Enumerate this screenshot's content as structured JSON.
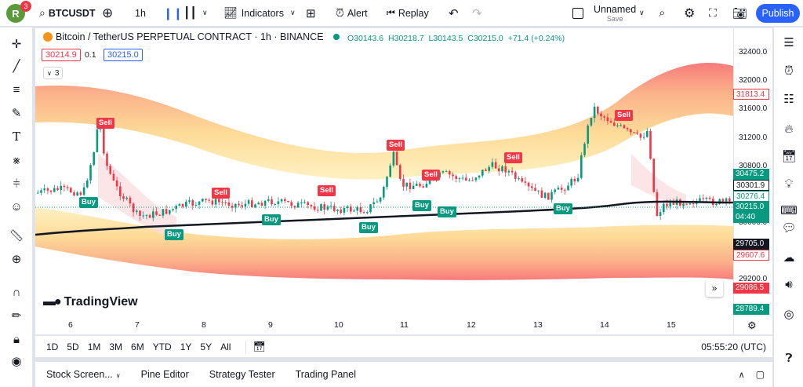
{
  "topbar": {
    "avatar_letter": "R",
    "notif_count": "3",
    "symbol": "BTCUSDT",
    "interval": "1h",
    "indicators_label": "Indicators",
    "alert_label": "Alert",
    "replay_label": "Replay",
    "layout_name": "Unnamed",
    "layout_status": "Save",
    "publish_label": "Publish"
  },
  "legend": {
    "title": "Bitcoin / TetherUS PERPETUAL CONTRACT · 1h · BINANCE",
    "o": "O30143.6",
    "h": "H30218.7",
    "l": "L30143.5",
    "c": "C30215.0",
    "change": "+71.4 (+0.24%)",
    "bid": "30214.9",
    "spread": "0.1",
    "ask": "30215.0",
    "indicator_count": "3"
  },
  "colors": {
    "up": "#089981",
    "down": "#f23645",
    "accent": "#2962ff"
  },
  "chart_data": {
    "type": "candlestick",
    "symbol": "BTCUSDT",
    "x_ticks": [
      "6",
      "7",
      "8",
      "9",
      "10",
      "11",
      "12",
      "13",
      "14",
      "15"
    ],
    "y_ticks": [
      "32400.0",
      "32000.0",
      "31600.0",
      "31200.0",
      "30800.0",
      "30400.0",
      "30000.0",
      "29600.0",
      "29200.0"
    ],
    "ylim": [
      28700,
      32500
    ],
    "price_labels": [
      {
        "value": "31813.4",
        "style": "red-outline"
      },
      {
        "value": "30475.2",
        "style": "green"
      },
      {
        "value": "30301.9",
        "style": "dark-outline"
      },
      {
        "value": "30276.4",
        "style": "teal-outline"
      },
      {
        "value": "30215.0",
        "style": "green"
      },
      {
        "value": "04:40",
        "style": "green"
      },
      {
        "value": "29705.0",
        "style": "dark"
      },
      {
        "value": "29607.6",
        "style": "red-outline"
      },
      {
        "value": "29086.5",
        "style": "red"
      },
      {
        "value": "28789.4",
        "style": "green"
      }
    ],
    "signals": [
      {
        "label": "Sell",
        "type": "sell"
      },
      {
        "label": "Buy",
        "type": "buy"
      },
      {
        "label": "Buy",
        "type": "buy"
      },
      {
        "label": "Sell",
        "type": "sell"
      },
      {
        "label": "Buy",
        "type": "buy"
      },
      {
        "label": "Sell",
        "type": "sell"
      },
      {
        "label": "Buy",
        "type": "buy"
      },
      {
        "label": "Sell",
        "type": "sell"
      },
      {
        "label": "Sell",
        "type": "sell"
      },
      {
        "label": "Buy",
        "type": "buy"
      },
      {
        "label": "Buy",
        "type": "buy"
      },
      {
        "label": "Sell",
        "type": "sell"
      },
      {
        "label": "Buy",
        "type": "buy"
      },
      {
        "label": "Sell",
        "type": "sell"
      }
    ],
    "watermark": "TradingView"
  },
  "bottombar": {
    "ranges": [
      "1D",
      "5D",
      "1M",
      "3M",
      "6M",
      "YTD",
      "1Y",
      "5Y",
      "All"
    ],
    "clock": "05:55:20 (UTC)"
  },
  "panel": {
    "tabs": [
      "Stock Screen...",
      "Pine Editor",
      "Strategy Tester",
      "Trading Panel"
    ]
  },
  "icons": {
    "left": [
      "crosshair-icon",
      "trendline-icon",
      "fib-icon",
      "brush-icon",
      "text-icon",
      "pattern-icon",
      "measure-icon",
      "emoji-icon",
      "ruler-icon",
      "zoom-icon",
      "magnet-icon",
      "lock-drawing-icon",
      "lock-icon",
      "eye-icon"
    ],
    "right": [
      "watchlist-icon",
      "alarm-clock-icon",
      "object-tree-icon",
      "hotlist-icon",
      "calendar-icon",
      "ideas-icon",
      "calculator-icon",
      "chat-icon",
      "news-icon",
      "streams-icon",
      "broadcast-icon"
    ]
  }
}
